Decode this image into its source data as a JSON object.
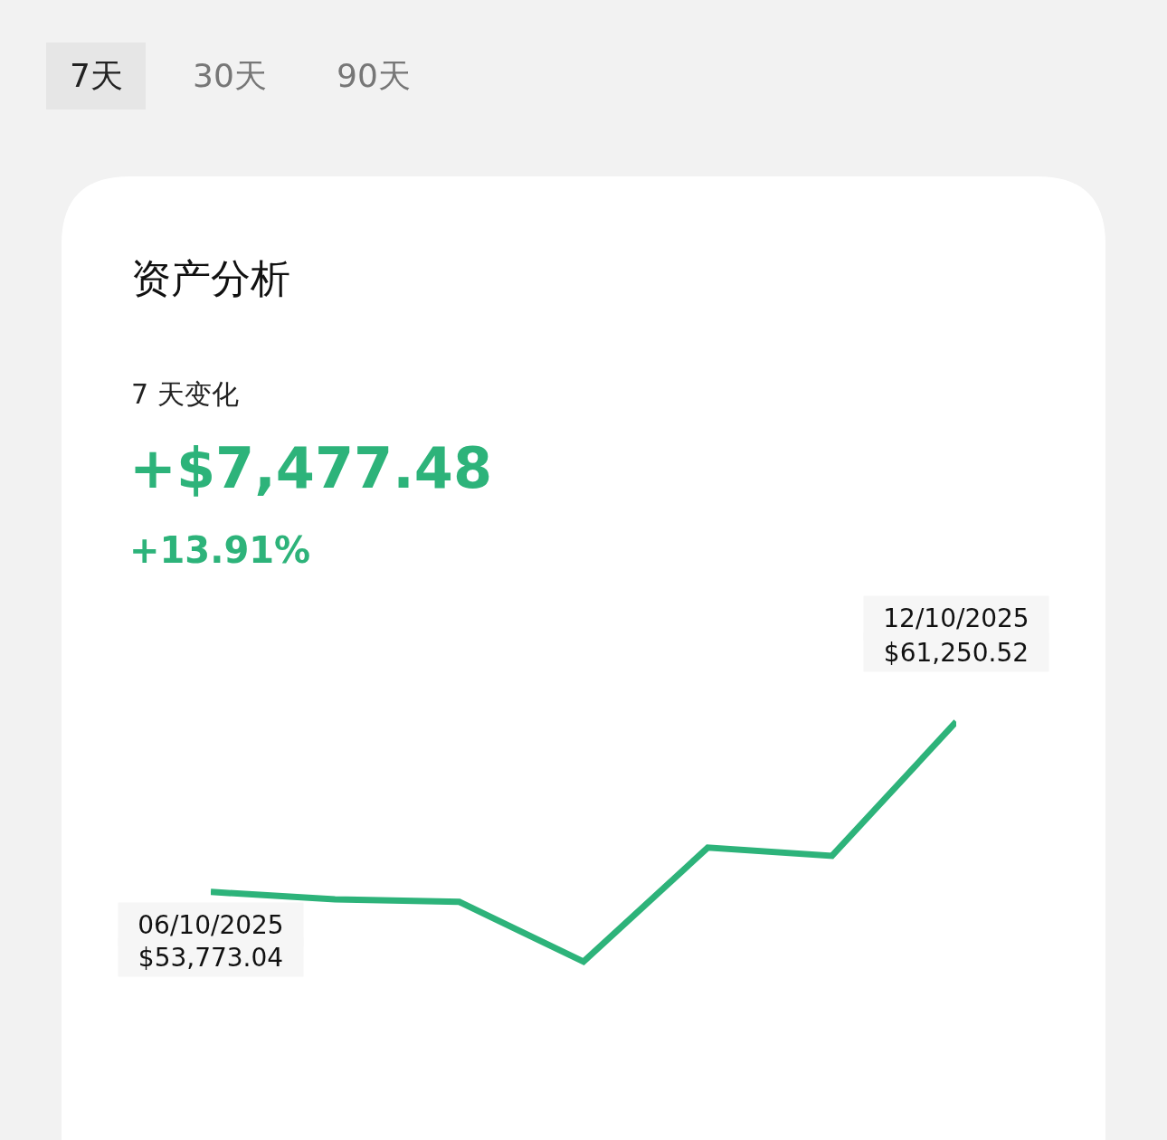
{
  "chart_data": {
    "type": "line",
    "title": "资产分析",
    "subtitle": "7 天变化",
    "annotations": [
      "7天",
      "30天",
      "90天",
      "+$7,477.48",
      "+13.91%",
      "06/10/2025",
      "12/10/2025"
    ],
    "categories": [
      null,
      null,
      null,
      null,
      null,
      null,
      null
    ],
    "series": [
      {
        "color": "#2db37a",
        "values": [
          53773.04,
          53450,
          53340,
          50710,
          55720,
          55360,
          61250.52
        ],
        "value_labels": [
          "$53,773.04",
          null,
          null,
          null,
          null,
          null,
          "$61,250.52"
        ]
      }
    ]
  }
}
